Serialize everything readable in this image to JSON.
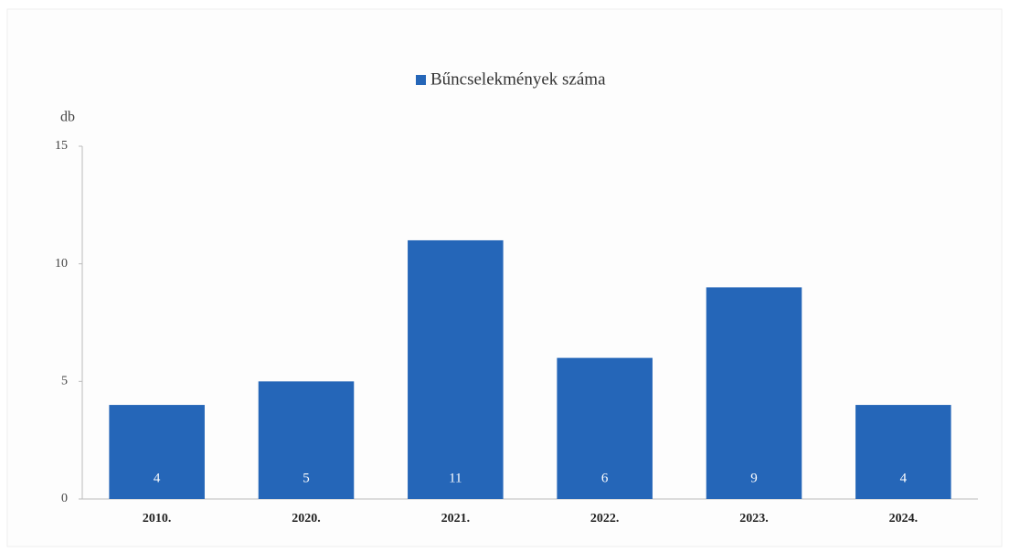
{
  "chart_data": {
    "type": "bar",
    "y_label": "db",
    "categories": [
      "2010.",
      "2020.",
      "2021.",
      "2022.",
      "2023.",
      "2024."
    ],
    "series": [
      {
        "name": "Bűncselekmények száma",
        "color": "#2566b8",
        "values": [
          4,
          5,
          11,
          6,
          9,
          4
        ]
      }
    ],
    "ylim": [
      0,
      15
    ],
    "yticks": [
      0,
      5,
      10,
      15
    ],
    "grid": false,
    "legend": "top"
  }
}
